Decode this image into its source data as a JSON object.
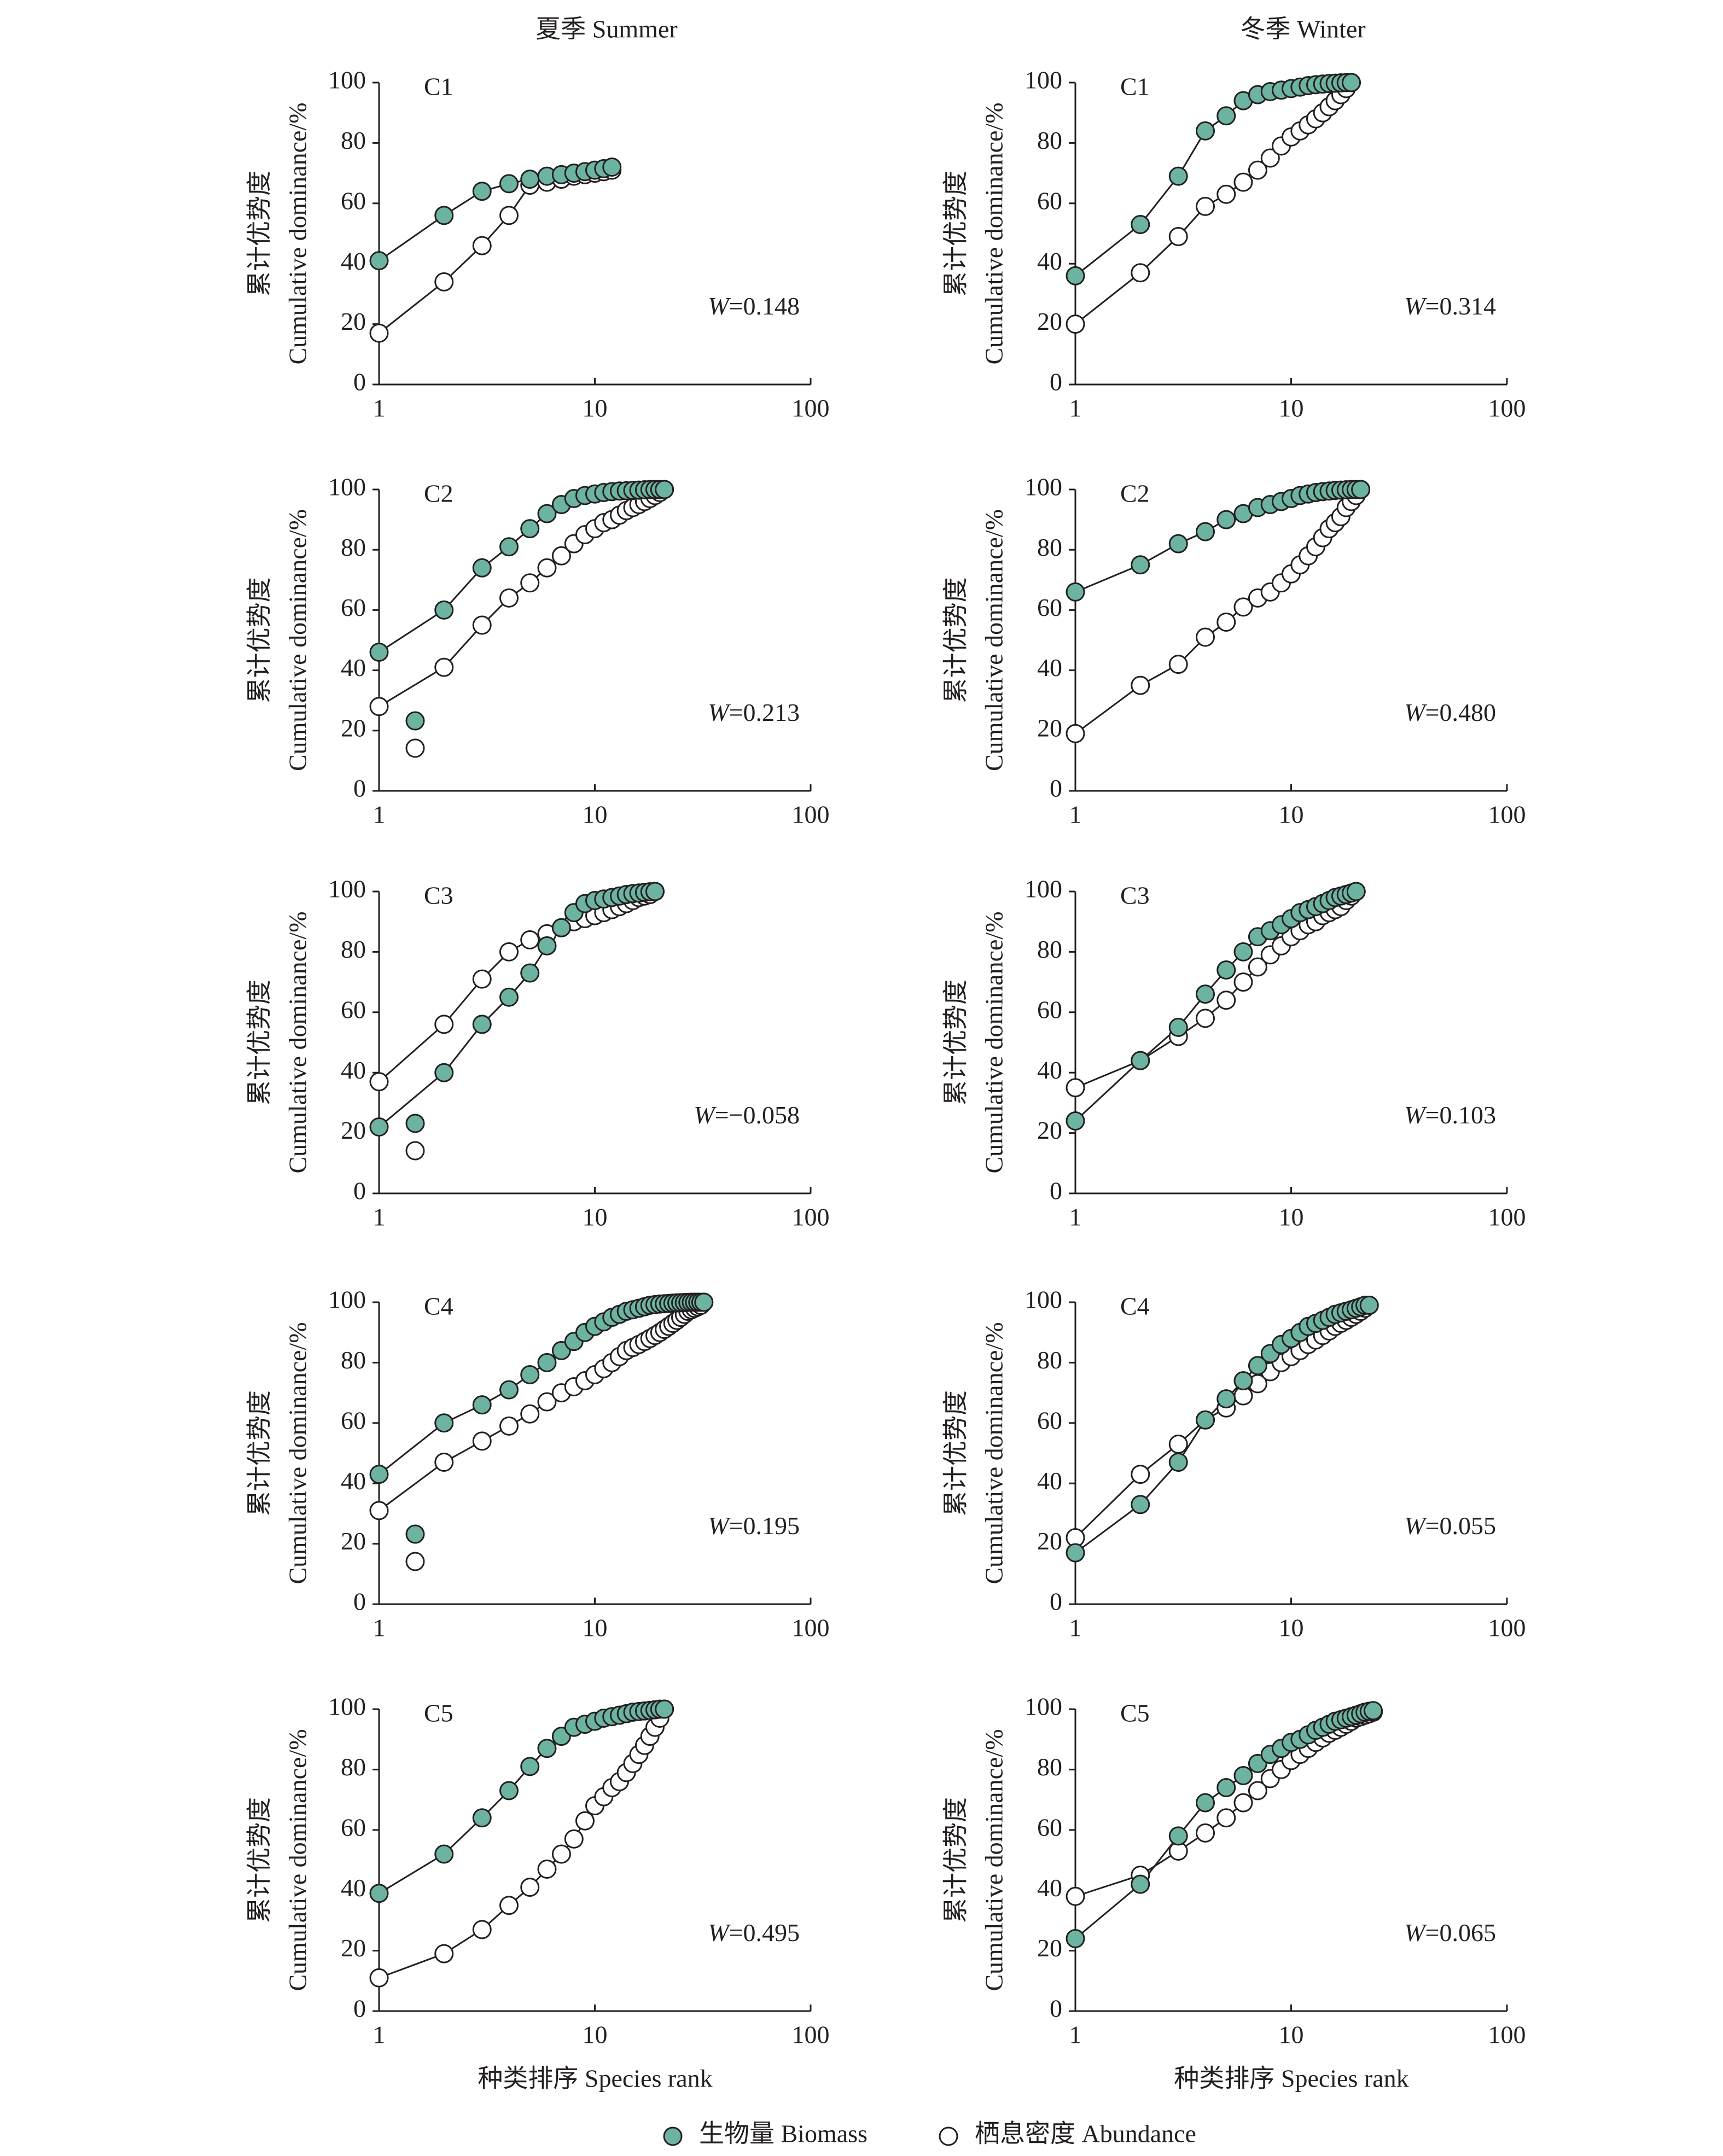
{
  "chart_data": [
    {
      "type": "line",
      "title": "夏季 Summer",
      "label": "C1",
      "annotation": "W=0.148",
      "ylabel": [
        "累计优势度",
        "Cumulative dominance/%"
      ],
      "xscale": "log",
      "xlim": [
        1,
        100
      ],
      "xticks": [
        1,
        10,
        100
      ],
      "ylim": [
        0,
        100
      ],
      "yticks": [
        0,
        20,
        40,
        60,
        80,
        100
      ],
      "x": [
        1,
        2,
        3,
        4,
        5,
        6,
        7,
        8,
        9,
        10,
        11,
        12
      ],
      "series": [
        {
          "name": "生物量 Biomass",
          "color": "#6db3a2",
          "values": [
            41,
            56,
            64,
            66.5,
            68,
            69,
            69.5,
            70,
            70.5,
            71,
            71.5,
            72
          ]
        },
        {
          "name": "栖息密度 Abundance",
          "color": "#ffffff",
          "values": [
            17,
            34,
            46,
            56,
            66,
            67,
            68,
            69,
            69.5,
            70,
            70.5,
            71
          ]
        }
      ]
    },
    {
      "type": "line",
      "title": "冬季 Winter",
      "label": "C1",
      "annotation": "W=0.314",
      "ylabel": [
        "累计优势度",
        "Cumulative dominance/%"
      ],
      "xscale": "log",
      "xlim": [
        1,
        100
      ],
      "xticks": [
        1,
        10,
        100
      ],
      "ylim": [
        0,
        100
      ],
      "yticks": [
        0,
        20,
        40,
        60,
        80,
        100
      ],
      "x": [
        1,
        2,
        3,
        4,
        5,
        6,
        7,
        8,
        9,
        10,
        11,
        12,
        13,
        14,
        15,
        16,
        17,
        18,
        19
      ],
      "series": [
        {
          "color": "#6db3a2",
          "values": [
            36,
            53,
            69,
            84,
            89,
            94,
            96,
            97,
            97.5,
            98,
            98.5,
            99,
            99.3,
            99.5,
            99.7,
            99.8,
            99.9,
            100,
            100
          ]
        },
        {
          "color": "#ffffff",
          "values": [
            20,
            37,
            49,
            59,
            63,
            67,
            71,
            75,
            79,
            82,
            84,
            86,
            88,
            90,
            92,
            94,
            96,
            98,
            100
          ]
        }
      ]
    },
    {
      "type": "line",
      "label": "C2",
      "annotation": "W=0.213",
      "ylabel": [
        "累计优势度",
        "Cumulative dominance/%"
      ],
      "xscale": "log",
      "xlim": [
        1,
        100
      ],
      "xticks": [
        1,
        10,
        100
      ],
      "ylim": [
        0,
        100
      ],
      "yticks": [
        0,
        20,
        40,
        60,
        80,
        100
      ],
      "x": [
        1,
        2,
        3,
        4,
        5,
        6,
        7,
        8,
        9,
        10,
        11,
        12,
        13,
        14,
        15,
        16,
        17,
        18,
        19,
        20,
        21
      ],
      "series": [
        {
          "color": "#6db3a2",
          "values": [
            46,
            60,
            74,
            81,
            87,
            92,
            95,
            97,
            98,
            98.5,
            99,
            99.3,
            99.5,
            99.6,
            99.7,
            99.8,
            99.9,
            100,
            100,
            100,
            100
          ]
        },
        {
          "color": "#ffffff",
          "values": [
            28,
            41,
            55,
            64,
            69,
            74,
            78,
            82,
            85,
            87,
            89,
            90,
            91.5,
            93,
            94,
            95,
            96,
            97,
            98,
            99,
            100
          ]
        }
      ]
    },
    {
      "type": "line",
      "label": "C2",
      "annotation": "W=0.480",
      "ylabel": [
        "累计优势度",
        "Cumulative dominance/%"
      ],
      "xscale": "log",
      "xlim": [
        1,
        100
      ],
      "xticks": [
        1,
        10,
        100
      ],
      "ylim": [
        0,
        100
      ],
      "yticks": [
        0,
        20,
        40,
        60,
        80,
        100
      ],
      "x": [
        1,
        2,
        3,
        4,
        5,
        6,
        7,
        8,
        9,
        10,
        11,
        12,
        13,
        14,
        15,
        16,
        17,
        18,
        19,
        20,
        21
      ],
      "series": [
        {
          "color": "#6db3a2",
          "values": [
            66,
            75,
            82,
            86,
            90,
            92,
            94,
            95,
            96,
            97,
            98,
            98.5,
            99,
            99.3,
            99.5,
            99.7,
            99.8,
            99.9,
            100,
            100,
            100
          ]
        },
        {
          "color": "#ffffff",
          "values": [
            19,
            35,
            42,
            51,
            56,
            61,
            64,
            66,
            69,
            72,
            75,
            78,
            81,
            84,
            87,
            89,
            91,
            94,
            96,
            98,
            100
          ]
        }
      ]
    },
    {
      "type": "line",
      "label": "C3",
      "annotation": "W=−0.058",
      "ylabel": [
        "累计优势度",
        "Cumulative dominance/%"
      ],
      "xscale": "log",
      "xlim": [
        1,
        100
      ],
      "xticks": [
        1,
        10,
        100
      ],
      "ylim": [
        0,
        100
      ],
      "yticks": [
        0,
        20,
        40,
        60,
        80,
        100
      ],
      "x": [
        1,
        2,
        3,
        4,
        5,
        6,
        7,
        8,
        9,
        10,
        11,
        12,
        13,
        14,
        15,
        16,
        17,
        18,
        19
      ],
      "series": [
        {
          "color": "#6db3a2",
          "values": [
            22,
            40,
            56,
            65,
            73,
            82,
            88,
            93,
            96,
            97,
            97.5,
            98,
            98.5,
            99,
            99.3,
            99.5,
            99.7,
            99.9,
            100
          ]
        },
        {
          "color": "#ffffff",
          "values": [
            37,
            56,
            71,
            80,
            84,
            86,
            88,
            90,
            91,
            92,
            93,
            94,
            95,
            96,
            97,
            98,
            98.5,
            99,
            100
          ]
        }
      ]
    },
    {
      "type": "line",
      "label": "C3",
      "annotation": "W=0.103",
      "ylabel": [
        "累计优势度",
        "Cumulative dominance/%"
      ],
      "xscale": "log",
      "xlim": [
        1,
        100
      ],
      "xticks": [
        1,
        10,
        100
      ],
      "ylim": [
        0,
        100
      ],
      "yticks": [
        0,
        20,
        40,
        60,
        80,
        100
      ],
      "x": [
        1,
        2,
        3,
        4,
        5,
        6,
        7,
        8,
        9,
        10,
        11,
        12,
        13,
        14,
        15,
        16,
        17,
        18,
        19,
        20
      ],
      "series": [
        {
          "color": "#6db3a2",
          "values": [
            24,
            44,
            55,
            66,
            74,
            80,
            85,
            87,
            89,
            91,
            93,
            94,
            95,
            96,
            97,
            98,
            98.5,
            99,
            99.5,
            100
          ]
        },
        {
          "color": "#ffffff",
          "values": [
            35,
            44,
            52,
            58,
            64,
            70,
            75,
            79,
            82,
            85,
            87,
            89,
            90,
            92,
            93,
            94,
            95,
            97,
            98.5,
            100
          ]
        }
      ]
    },
    {
      "type": "line",
      "label": "C4",
      "annotation": "W=0.195",
      "ylabel": [
        "累计优势度",
        "Cumulative dominance/%"
      ],
      "xscale": "log",
      "xlim": [
        1,
        100
      ],
      "xticks": [
        1,
        10,
        100
      ],
      "ylim": [
        0,
        100
      ],
      "yticks": [
        0,
        20,
        40,
        60,
        80,
        100
      ],
      "x": [
        1,
        2,
        3,
        4,
        5,
        6,
        7,
        8,
        9,
        10,
        11,
        12,
        13,
        14,
        15,
        16,
        17,
        18,
        19,
        20,
        21,
        22,
        23,
        24,
        25,
        26,
        27,
        28,
        29,
        30,
        31,
        32
      ],
      "series": [
        {
          "color": "#6db3a2",
          "values": [
            43,
            60,
            66,
            71,
            76,
            80,
            84,
            87,
            90,
            92,
            93.5,
            95,
            96,
            97,
            97.5,
            98,
            98.5,
            99,
            99.2,
            99.4,
            99.5,
            99.6,
            99.7,
            99.8,
            99.85,
            99.9,
            99.95,
            100,
            100,
            100,
            100,
            100
          ]
        },
        {
          "color": "#ffffff",
          "values": [
            31,
            47,
            54,
            59,
            63,
            67,
            70,
            72,
            74,
            76,
            78,
            80,
            82,
            84,
            85,
            86,
            87,
            88,
            89,
            90,
            91,
            92,
            93,
            94,
            95,
            96,
            97,
            97.5,
            98,
            98.5,
            99,
            100
          ]
        }
      ]
    },
    {
      "type": "line",
      "label": "C4",
      "annotation": "W=0.055",
      "ylabel": [
        "累计优势度",
        "Cumulative dominance/%"
      ],
      "xscale": "log",
      "xlim": [
        1,
        100
      ],
      "xticks": [
        1,
        10,
        100
      ],
      "ylim": [
        0,
        100
      ],
      "yticks": [
        0,
        20,
        40,
        60,
        80,
        100
      ],
      "x": [
        1,
        2,
        3,
        4,
        5,
        6,
        7,
        8,
        9,
        10,
        11,
        12,
        13,
        14,
        15,
        16,
        17,
        18,
        19,
        20,
        21,
        22,
        23
      ],
      "series": [
        {
          "color": "#6db3a2",
          "values": [
            17,
            33,
            47,
            61,
            68,
            74,
            79,
            83,
            86,
            88,
            90,
            92,
            93,
            94,
            95,
            96,
            96.5,
            97,
            97.5,
            98,
            98.5,
            99,
            99
          ]
        },
        {
          "color": "#ffffff",
          "values": [
            22,
            43,
            53,
            61,
            65,
            69,
            73,
            77,
            80,
            82,
            84,
            86,
            87.5,
            89,
            90.5,
            92,
            93,
            94,
            95,
            96,
            97,
            98,
            99
          ]
        }
      ]
    },
    {
      "type": "line",
      "label": "C5",
      "annotation": "W=0.495",
      "ylabel": [
        "累计优势度",
        "Cumulative dominance/%"
      ],
      "xlabel": "种类排序 Species rank",
      "xscale": "log",
      "xlim": [
        1,
        100
      ],
      "xticks": [
        1,
        10,
        100
      ],
      "ylim": [
        0,
        100
      ],
      "yticks": [
        0,
        20,
        40,
        60,
        80,
        100
      ],
      "x": [
        1,
        2,
        3,
        4,
        5,
        6,
        7,
        8,
        9,
        10,
        11,
        12,
        13,
        14,
        15,
        16,
        17,
        18,
        19,
        20,
        21
      ],
      "series": [
        {
          "color": "#6db3a2",
          "values": [
            39,
            52,
            64,
            73,
            81,
            87,
            91,
            94,
            95,
            96,
            97,
            97.5,
            98,
            98.5,
            99,
            99.2,
            99.4,
            99.6,
            99.8,
            100,
            100
          ]
        },
        {
          "color": "#ffffff",
          "values": [
            11,
            19,
            27,
            35,
            41,
            47,
            52,
            57,
            63,
            68,
            71,
            74,
            76,
            79,
            82,
            85,
            88,
            91,
            94,
            97,
            100
          ]
        }
      ]
    },
    {
      "type": "line",
      "label": "C5",
      "annotation": "W=0.065",
      "ylabel": [
        "累计优势度",
        "Cumulative dominance/%"
      ],
      "xlabel": "种类排序 Species rank",
      "xscale": "log",
      "xlim": [
        1,
        100
      ],
      "xticks": [
        1,
        10,
        100
      ],
      "ylim": [
        0,
        100
      ],
      "yticks": [
        0,
        20,
        40,
        60,
        80,
        100
      ],
      "x": [
        1,
        2,
        3,
        4,
        5,
        6,
        7,
        8,
        9,
        10,
        11,
        12,
        13,
        14,
        15,
        16,
        17,
        18,
        19,
        20,
        21,
        22,
        23,
        24
      ],
      "series": [
        {
          "color": "#6db3a2",
          "values": [
            24,
            42,
            58,
            69,
            74,
            78,
            82,
            85,
            87,
            89,
            90,
            91.5,
            93,
            94,
            95,
            96,
            96.5,
            97,
            97.5,
            98,
            98.5,
            99,
            99.3,
            99.5
          ]
        },
        {
          "color": "#ffffff",
          "values": [
            38,
            45,
            53,
            59,
            64,
            69,
            73,
            77,
            80,
            83,
            85,
            87,
            89,
            90.5,
            92,
            93,
            94,
            95,
            96,
            97,
            97.5,
            98,
            98.5,
            99
          ]
        }
      ]
    }
  ]
}
